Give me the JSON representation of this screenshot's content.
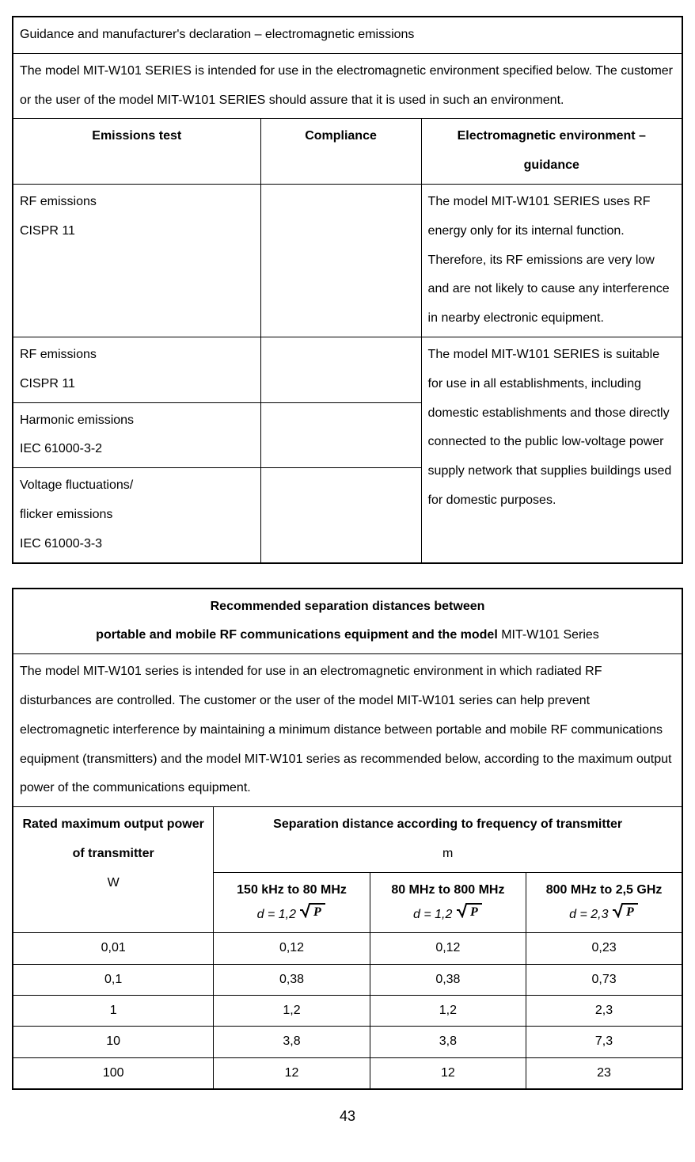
{
  "table1": {
    "title": "Guidance and manufacturer's declaration – electromagnetic emissions",
    "intro": "The model MIT-W101 SERIES is intended for use in the electromagnetic environment specified below. The customer or the user of the model MIT-W101 SERIES should assure that it is used in such an environment.",
    "headers": {
      "c1": "Emissions test",
      "c2": "Compliance",
      "c3": "Electromagnetic environment – guidance"
    },
    "row1": {
      "test_a": "RF emissions",
      "test_b": "CISPR 11",
      "compliance": "",
      "guidance": "The model MIT-W101 SERIES uses RF energy only for its internal function. Therefore, its RF emissions are very low and are not likely to cause any interference in nearby electronic equipment."
    },
    "row2": {
      "test_a": "RF emissions",
      "test_b": "CISPR 11",
      "compliance": ""
    },
    "row3": {
      "test_a": "Harmonic emissions",
      "test_b": "IEC 61000-3-2",
      "compliance": ""
    },
    "row4": {
      "test_a": "Voltage fluctuations/",
      "test_b": "flicker emissions",
      "test_c": "IEC 61000-3-3",
      "compliance": ""
    },
    "guidance_merged": "The model MIT-W101 SERIES is suitable for use in all establishments, including domestic establishments and those directly connected to the public low-voltage power supply network that supplies buildings used for domestic purposes."
  },
  "table2": {
    "title_l1": "Recommended separation distances between",
    "title_l2a": "portable and mobile RF communications equipment and the model ",
    "title_l2b": "MIT-W101 Series",
    "intro": "The model MIT-W101 series is intended for use in an electromagnetic environment in which radiated RF disturbances are controlled. The customer or the user of the model MIT-W101 series can help prevent electromagnetic interference by maintaining a minimum distance between portable and mobile RF communications equipment (transmitters) and the model MIT-W101 series as recommended below, according to the maximum output power of the communications equipment.",
    "power_hdr_l1": "Rated maximum output power",
    "power_hdr_l2": "of transmitter",
    "power_hdr_l3": "W",
    "sep_hdr_l1": "Separation distance according to frequency of transmitter",
    "sep_hdr_l2": "m",
    "freq1": "150 kHz to 80 MHz",
    "freq2": "80 MHz to 800 MHz",
    "freq3": "800 MHz to 2,5 GHz",
    "d1": "d = 1,2 ",
    "d2": "d = 1,2 ",
    "d3": "d = 2,3 ",
    "rows": [
      {
        "p": "0,01",
        "v1": "0,12",
        "v2": "0,12",
        "v3": "0,23"
      },
      {
        "p": "0,1",
        "v1": "0,38",
        "v2": "0,38",
        "v3": "0,73"
      },
      {
        "p": "1",
        "v1": "1,2",
        "v2": "1,2",
        "v3": "2,3"
      },
      {
        "p": "10",
        "v1": "3,8",
        "v2": "3,8",
        "v3": "7,3"
      },
      {
        "p": "100",
        "v1": "12",
        "v2": "12",
        "v3": "23"
      }
    ]
  },
  "page_number": "43",
  "col_widths": {
    "t1_c1": "37%",
    "t1_c2": "24%",
    "t1_c3": "39%",
    "t2_c1": "30%",
    "t2_rest": "23.33%"
  },
  "colors": {
    "text": "#000000",
    "bg": "#ffffff",
    "border": "#000000"
  }
}
